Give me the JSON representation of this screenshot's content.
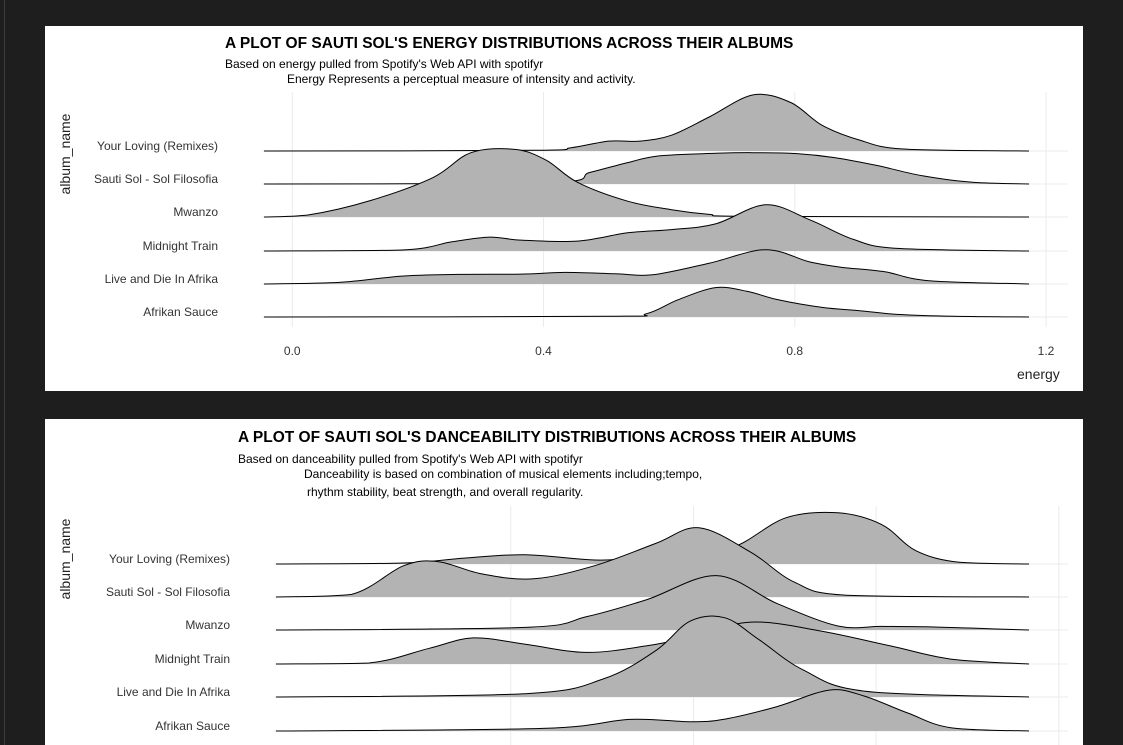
{
  "chart_data": [
    {
      "type": "ridgeline",
      "title": "A PLOT OF SAUTI SOL'S ENERGY DISTRIBUTIONS ACROSS THEIR ALBUMS",
      "subtitle_lines": [
        "Based on energy pulled from Spotify's Web API with spotifyr",
        "Energy Represents a perceptual measure of intensity and activity."
      ],
      "xlabel": "energy",
      "ylabel": "album_name",
      "xlim": [
        -0.045,
        1.235
      ],
      "x_ticks": [
        0.0,
        0.4,
        0.8,
        1.2
      ],
      "x_tick_labels": [
        "0.0",
        "0.4",
        "0.8",
        "1.2"
      ],
      "grid": true,
      "fill_color": "#b3b3b3",
      "line_color": "#000000",
      "x_range": [
        -0.05,
        1.17
      ],
      "categories": [
        "Afrikan Sauce",
        "Live and Die In Afrika",
        "Midnight Train",
        "Mwanzo",
        "Sauti Sol - Sol Filosofia",
        "Your Loving (Remixes)"
      ],
      "series": [
        {
          "name": "Afrikan Sauce",
          "x": [
            -0.05,
            0.5,
            0.56,
            0.61,
            0.67,
            0.72,
            0.77,
            0.84,
            0.9,
            0.96,
            1.05,
            1.17
          ],
          "density": [
            0,
            0.02,
            0.1,
            0.52,
            0.89,
            0.78,
            0.52,
            0.29,
            0.19,
            0.08,
            0.02,
            0
          ]
        },
        {
          "name": "Live and Die In Afrika",
          "x": [
            -0.05,
            0.07,
            0.17,
            0.26,
            0.36,
            0.43,
            0.51,
            0.57,
            0.66,
            0.75,
            0.82,
            0.87,
            0.94,
            1.01,
            1.17
          ],
          "density": [
            0,
            0.05,
            0.24,
            0.29,
            0.3,
            0.35,
            0.31,
            0.28,
            0.63,
            1.04,
            0.67,
            0.51,
            0.37,
            0.1,
            0
          ]
        },
        {
          "name": "Midnight Train",
          "x": [
            -0.05,
            0.17,
            0.25,
            0.31,
            0.36,
            0.45,
            0.53,
            0.6,
            0.67,
            0.75,
            0.82,
            0.89,
            0.96,
            1.17
          ],
          "density": [
            0,
            0.03,
            0.28,
            0.42,
            0.33,
            0.3,
            0.55,
            0.65,
            0.82,
            1.4,
            0.95,
            0.35,
            0.08,
            0
          ]
        },
        {
          "name": "Mwanzo",
          "x": [
            -0.05,
            0.02,
            0.12,
            0.22,
            0.28,
            0.35,
            0.4,
            0.45,
            0.53,
            0.6,
            0.66,
            0.72,
            1.17
          ],
          "density": [
            0,
            0.06,
            0.5,
            1.2,
            1.95,
            2.05,
            1.72,
            1.05,
            0.48,
            0.22,
            0.08,
            0.02,
            0
          ]
        },
        {
          "name": "Sauti Sol - Sol Filosofia",
          "x": [
            -0.05,
            0.4,
            0.47,
            0.53,
            0.58,
            0.67,
            0.73,
            0.8,
            0.86,
            0.93,
            1.0,
            1.08,
            1.17
          ],
          "density": [
            0,
            0.03,
            0.35,
            0.65,
            0.85,
            0.93,
            0.95,
            0.92,
            0.8,
            0.55,
            0.25,
            0.05,
            0
          ]
        },
        {
          "name": "Your Loving (Remixes)",
          "x": [
            -0.05,
            0.38,
            0.44,
            0.5,
            0.55,
            0.6,
            0.66,
            0.73,
            0.79,
            0.84,
            0.9,
            0.97,
            1.17
          ],
          "density": [
            0,
            0.02,
            0.1,
            0.3,
            0.3,
            0.48,
            1.03,
            1.7,
            1.47,
            0.78,
            0.33,
            0.06,
            0
          ]
        }
      ]
    },
    {
      "type": "ridgeline",
      "title": "A PLOT OF SAUTI SOL'S DANCEABILITY DISTRIBUTIONS ACROSS THEIR ALBUMS",
      "subtitle_lines": [
        "Based on danceability pulled from Spotify's Web API with spotifyr",
        "Danceability is based on combination of musical elements including;tempo,",
        "rhythm stability, beat strength, and overall regularity."
      ],
      "xlabel": "",
      "ylabel": "album_name",
      "xlim": [
        0.143,
        1.01
      ],
      "x_ticks": [
        0.4,
        0.6,
        0.8,
        1.0
      ],
      "x_tick_labels": [],
      "grid": true,
      "fill_color": "#b3b3b3",
      "line_color": "#000000",
      "x_range": [
        0.143,
        1.01
      ],
      "categories": [
        "Afrikan Sauce",
        "Live and Die In Afrika",
        "Midnight Train",
        "Mwanzo",
        "Sauti Sol - Sol Filosofia",
        "Your Loving (Remixes)"
      ],
      "series": [
        {
          "name": "Afrikan Sauce",
          "x": [
            0.143,
            0.45,
            0.55,
            0.62,
            0.66,
            0.72,
            0.78,
            0.82,
            0.87,
            0.92,
            1.01
          ],
          "density": [
            0,
            0.08,
            0.35,
            0.28,
            0.36,
            0.74,
            1.24,
            1.06,
            0.55,
            0.1,
            0
          ]
        },
        {
          "name": "Live and Die In Afrika",
          "x": [
            0.143,
            0.43,
            0.52,
            0.58,
            0.62,
            0.66,
            0.7,
            0.75,
            0.82,
            1.01
          ],
          "density": [
            0,
            0.1,
            0.55,
            1.4,
            2.3,
            2.4,
            1.72,
            0.82,
            0.18,
            0
          ]
        },
        {
          "name": "Midnight Train",
          "x": [
            0.143,
            0.25,
            0.32,
            0.37,
            0.43,
            0.5,
            0.57,
            0.62,
            0.69,
            0.77,
            0.85,
            0.92,
            1.01
          ],
          "density": [
            0,
            0.03,
            0.48,
            0.79,
            0.6,
            0.35,
            0.55,
            0.82,
            1.27,
            1.0,
            0.55,
            0.15,
            0
          ]
        },
        {
          "name": "Mwanzo",
          "x": [
            0.143,
            0.43,
            0.5,
            0.57,
            0.65,
            0.72,
            0.79,
            0.84,
            0.89,
            0.95,
            1.01
          ],
          "density": [
            0,
            0.08,
            0.4,
            0.92,
            1.65,
            0.8,
            0.12,
            0.11,
            0.1,
            0.05,
            0
          ]
        },
        {
          "name": "Sauti Sol - Sol Filosofia",
          "x": [
            0.143,
            0.23,
            0.29,
            0.33,
            0.38,
            0.44,
            0.51,
            0.58,
            0.63,
            0.69,
            0.74,
            0.8,
            1.01
          ],
          "density": [
            0,
            0.08,
            0.95,
            1.07,
            0.7,
            0.55,
            0.95,
            1.62,
            2.1,
            1.35,
            0.45,
            0.05,
            0
          ]
        },
        {
          "name": "Your Loving (Remixes)",
          "x": [
            0.143,
            0.29,
            0.36,
            0.43,
            0.51,
            0.56,
            0.62,
            0.67,
            0.73,
            0.79,
            0.84,
            0.88,
            0.93,
            1.01
          ],
          "density": [
            0,
            0.03,
            0.18,
            0.28,
            0.12,
            0.22,
            0.55,
            0.52,
            1.4,
            1.55,
            1.2,
            0.4,
            0.05,
            0
          ]
        }
      ]
    }
  ]
}
